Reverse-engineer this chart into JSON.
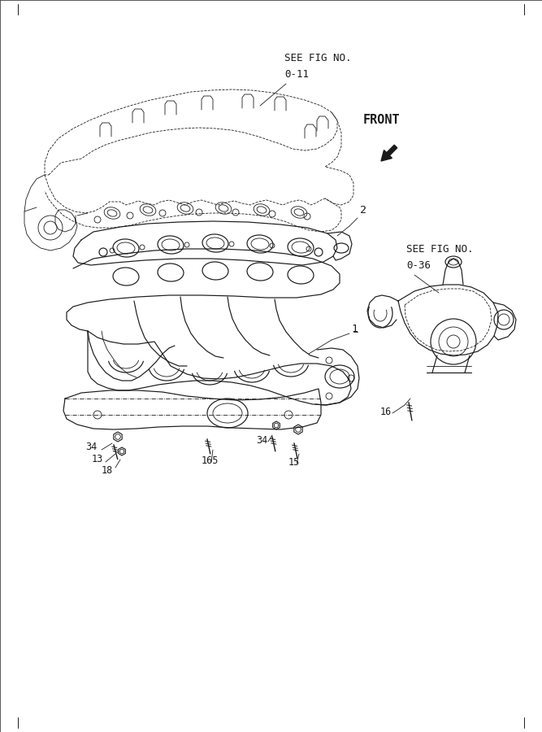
{
  "bg_color": "#ffffff",
  "line_color": "#1a1a1a",
  "fig_width": 6.67,
  "fig_height": 9.0,
  "labels": {
    "see_fig_top": "SEE FIG NO.",
    "see_fig_top_num": "0-11",
    "see_fig_right": "SEE FIG NO.",
    "see_fig_right_num": "0-36",
    "front": "FRONT",
    "part1": "1",
    "part2": "2",
    "part13": "13",
    "part15": "15",
    "part16": "16",
    "part18": "18",
    "part34a": "34",
    "part34b": "34",
    "part165": "165"
  },
  "font_family": "DejaVu Sans Mono",
  "label_fontsize": 8.5,
  "front_fontsize": 11,
  "lw_main": 0.85,
  "lw_thin": 0.6
}
